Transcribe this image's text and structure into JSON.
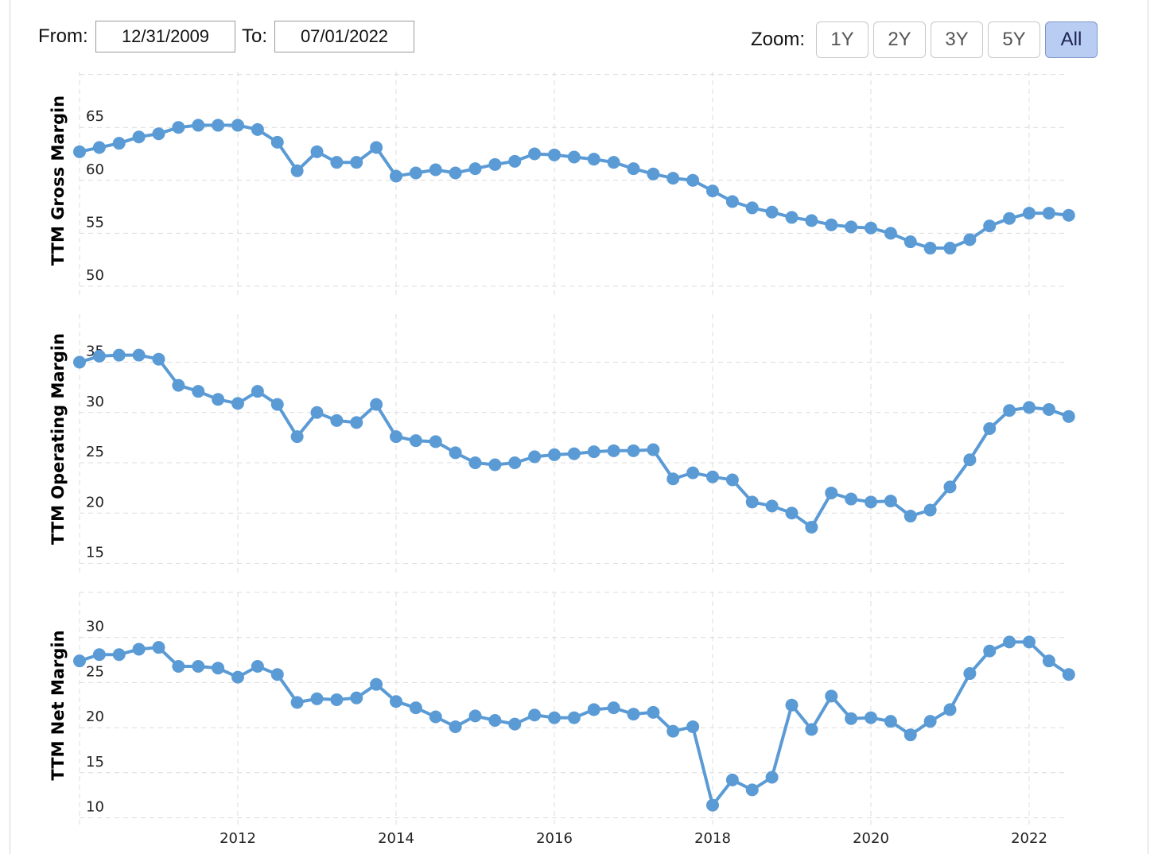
{
  "range": {
    "from_label": "From:",
    "from_value": "12/31/2009",
    "to_label": "To:",
    "to_value": "07/01/2022"
  },
  "zoom": {
    "label": "Zoom:",
    "buttons": [
      "1Y",
      "2Y",
      "3Y",
      "5Y",
      "All"
    ],
    "active": "All"
  },
  "chart_data": {
    "type": "line",
    "line_color": "#5b9bd5",
    "grid": true,
    "x_ticks": [
      2012,
      2014,
      2016,
      2018,
      2020,
      2022
    ],
    "x": [
      2010.0,
      2010.25,
      2010.5,
      2010.75,
      2011.0,
      2011.25,
      2011.5,
      2011.75,
      2012.0,
      2012.25,
      2012.5,
      2012.75,
      2013.0,
      2013.25,
      2013.5,
      2013.75,
      2014.0,
      2014.25,
      2014.5,
      2014.75,
      2015.0,
      2015.25,
      2015.5,
      2015.75,
      2016.0,
      2016.25,
      2016.5,
      2016.75,
      2017.0,
      2017.25,
      2017.5,
      2017.75,
      2018.0,
      2018.25,
      2018.5,
      2018.75,
      2019.0,
      2019.25,
      2019.5,
      2019.75,
      2020.0,
      2020.25,
      2020.5,
      2020.75,
      2021.0,
      2021.25,
      2021.5,
      2021.75,
      2022.0,
      2022.25,
      2022.5
    ],
    "panels": [
      {
        "ylabel": "TTM Gross Margin",
        "y_ticks": [
          50,
          55,
          60,
          65
        ],
        "ylim": [
          49,
          70
        ],
        "values": [
          62.7,
          63.1,
          63.5,
          64.1,
          64.4,
          65.0,
          65.2,
          65.2,
          65.2,
          64.8,
          63.6,
          60.9,
          62.7,
          61.7,
          61.7,
          63.1,
          60.4,
          60.7,
          61.0,
          60.7,
          61.1,
          61.5,
          61.8,
          62.5,
          62.4,
          62.2,
          62.0,
          61.7,
          61.1,
          60.6,
          60.2,
          60.0,
          59.0,
          58.0,
          57.4,
          57.0,
          56.5,
          56.2,
          55.8,
          55.6,
          55.5,
          55.0,
          54.2,
          53.6,
          53.6,
          54.4,
          55.7,
          56.4,
          56.9,
          56.9,
          56.7
        ]
      },
      {
        "ylabel": "TTM Operating Margin",
        "y_ticks": [
          15,
          20,
          25,
          30,
          35
        ],
        "ylim": [
          14,
          39
        ],
        "values": [
          35.0,
          35.6,
          35.7,
          35.7,
          35.3,
          32.7,
          32.1,
          31.3,
          30.9,
          32.1,
          30.8,
          27.6,
          30.0,
          29.2,
          29.0,
          30.8,
          27.6,
          27.2,
          27.1,
          26.0,
          25.0,
          24.8,
          25.0,
          25.6,
          25.8,
          25.9,
          26.1,
          26.2,
          26.2,
          26.3,
          23.4,
          24.0,
          23.6,
          23.3,
          21.1,
          20.7,
          20.0,
          18.6,
          22.0,
          21.4,
          21.1,
          21.2,
          19.7,
          20.3,
          22.6,
          25.3,
          28.4,
          30.2,
          30.5,
          30.3,
          29.6
        ]
      },
      {
        "ylabel": "TTM Net Margin",
        "y_ticks": [
          10,
          15,
          20,
          25,
          30
        ],
        "ylim": [
          9,
          35
        ],
        "values": [
          27.4,
          28.1,
          28.1,
          28.7,
          28.9,
          26.8,
          26.8,
          26.6,
          25.6,
          26.8,
          25.9,
          22.8,
          23.2,
          23.1,
          23.3,
          24.8,
          22.9,
          22.2,
          21.2,
          20.1,
          21.3,
          20.8,
          20.4,
          21.4,
          21.1,
          21.1,
          22.0,
          22.2,
          21.5,
          21.7,
          19.6,
          20.1,
          11.4,
          14.2,
          13.1,
          14.5,
          22.5,
          19.8,
          23.5,
          21.0,
          21.1,
          20.7,
          19.2,
          20.7,
          22.0,
          26.0,
          28.5,
          29.5,
          29.5,
          27.4,
          25.9
        ]
      }
    ]
  }
}
